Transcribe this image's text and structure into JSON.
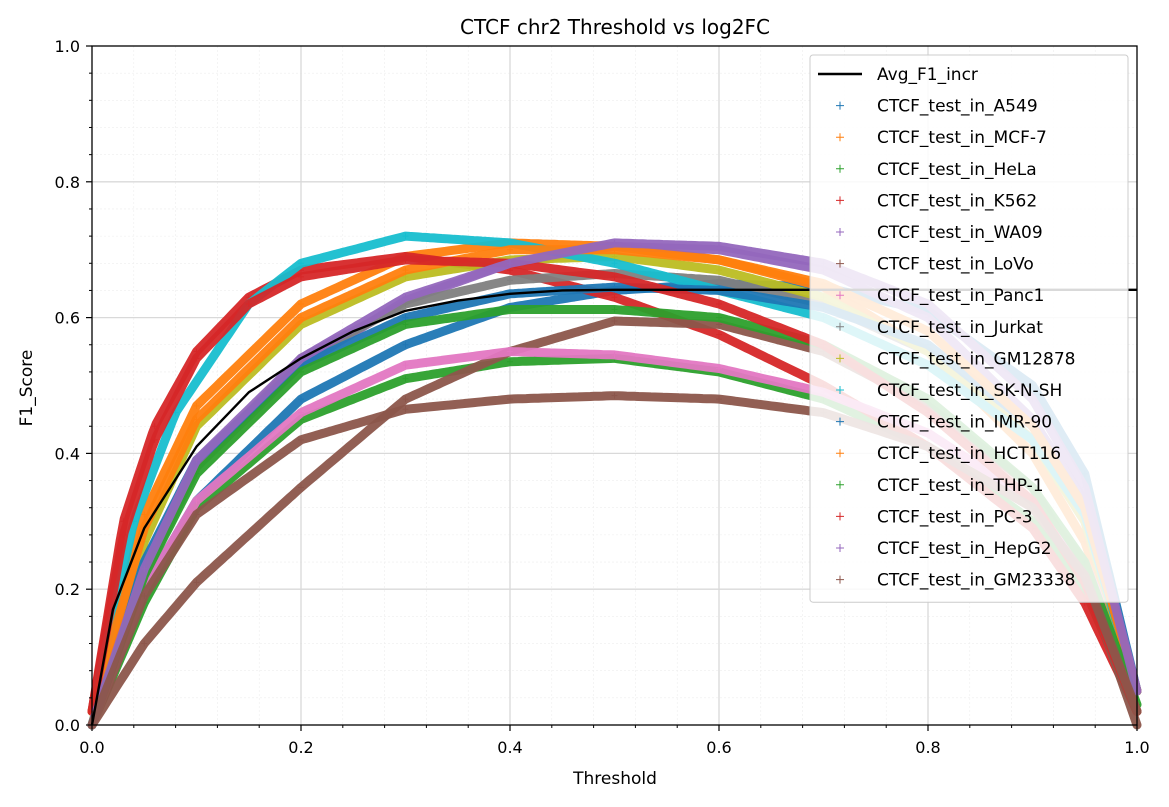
{
  "chart_data": {
    "type": "scatter",
    "title": "CTCF chr2 Threshold vs log2FC",
    "xlabel": "Threshold",
    "ylabel": "F1_Score",
    "xlim": [
      0,
      1
    ],
    "ylim": [
      0,
      1
    ],
    "xticks": [
      "0.0",
      "0.2",
      "0.4",
      "0.6",
      "0.8",
      "1.0"
    ],
    "yticks": [
      "0.0",
      "0.2",
      "0.4",
      "0.6",
      "0.8",
      "1.0"
    ],
    "grid": true,
    "legend_position": "upper-right",
    "average_line": {
      "name": "Avg_F1_incr",
      "color": "#000000",
      "points": [
        [
          0.0,
          0.0
        ],
        [
          0.02,
          0.17
        ],
        [
          0.05,
          0.29
        ],
        [
          0.1,
          0.41
        ],
        [
          0.15,
          0.49
        ],
        [
          0.2,
          0.54
        ],
        [
          0.25,
          0.58
        ],
        [
          0.3,
          0.61
        ],
        [
          0.35,
          0.625
        ],
        [
          0.4,
          0.635
        ],
        [
          0.45,
          0.64
        ],
        [
          0.5,
          0.641
        ],
        [
          0.6,
          0.641
        ],
        [
          0.7,
          0.641
        ],
        [
          0.8,
          0.641
        ],
        [
          0.9,
          0.641
        ],
        [
          1.0,
          0.641
        ]
      ]
    },
    "series": [
      {
        "name": "CTCF_test_in_A549",
        "color": "#1f77b4",
        "points": [
          [
            0.0,
            0.0
          ],
          [
            0.05,
            0.2
          ],
          [
            0.1,
            0.33
          ],
          [
            0.2,
            0.48
          ],
          [
            0.3,
            0.56
          ],
          [
            0.4,
            0.615
          ],
          [
            0.5,
            0.64
          ],
          [
            0.6,
            0.65
          ],
          [
            0.7,
            0.645
          ],
          [
            0.8,
            0.61
          ],
          [
            0.9,
            0.5
          ],
          [
            0.95,
            0.37
          ],
          [
            1.0,
            0.05
          ]
        ]
      },
      {
        "name": "CTCF_test_in_MCF-7",
        "color": "#ff7f0e",
        "points": [
          [
            0.0,
            0.02
          ],
          [
            0.05,
            0.31
          ],
          [
            0.1,
            0.47
          ],
          [
            0.2,
            0.62
          ],
          [
            0.3,
            0.69
          ],
          [
            0.4,
            0.71
          ],
          [
            0.5,
            0.705
          ],
          [
            0.6,
            0.685
          ],
          [
            0.7,
            0.645
          ],
          [
            0.8,
            0.55
          ],
          [
            0.9,
            0.4
          ],
          [
            0.95,
            0.27
          ],
          [
            1.0,
            0.05
          ]
        ]
      },
      {
        "name": "CTCF_test_in_HeLa",
        "color": "#2ca02c",
        "points": [
          [
            0.0,
            0.0
          ],
          [
            0.05,
            0.18
          ],
          [
            0.1,
            0.32
          ],
          [
            0.2,
            0.45
          ],
          [
            0.3,
            0.51
          ],
          [
            0.4,
            0.535
          ],
          [
            0.5,
            0.54
          ],
          [
            0.6,
            0.52
          ],
          [
            0.7,
            0.48
          ],
          [
            0.8,
            0.41
          ],
          [
            0.9,
            0.3
          ],
          [
            0.95,
            0.2
          ],
          [
            1.0,
            0.02
          ]
        ]
      },
      {
        "name": "CTCF_test_in_K562",
        "color": "#d62728",
        "points": [
          [
            0.0,
            0.02
          ],
          [
            0.03,
            0.3
          ],
          [
            0.06,
            0.44
          ],
          [
            0.1,
            0.55
          ],
          [
            0.15,
            0.63
          ],
          [
            0.2,
            0.67
          ],
          [
            0.3,
            0.69
          ],
          [
            0.4,
            0.67
          ],
          [
            0.5,
            0.63
          ],
          [
            0.6,
            0.575
          ],
          [
            0.7,
            0.5
          ],
          [
            0.8,
            0.41
          ],
          [
            0.9,
            0.29
          ],
          [
            0.95,
            0.18
          ],
          [
            1.0,
            0.02
          ]
        ]
      },
      {
        "name": "CTCF_test_in_WA09",
        "color": "#9467bd",
        "points": [
          [
            0.0,
            0.0
          ],
          [
            0.05,
            0.22
          ],
          [
            0.1,
            0.38
          ],
          [
            0.2,
            0.53
          ],
          [
            0.3,
            0.625
          ],
          [
            0.4,
            0.68
          ],
          [
            0.5,
            0.705
          ],
          [
            0.6,
            0.7
          ],
          [
            0.7,
            0.67
          ],
          [
            0.8,
            0.6
          ],
          [
            0.9,
            0.45
          ],
          [
            0.95,
            0.33
          ],
          [
            1.0,
            0.05
          ]
        ]
      },
      {
        "name": "CTCF_test_in_LoVo",
        "color": "#8c564b",
        "points": [
          [
            0.0,
            0.0
          ],
          [
            0.05,
            0.12
          ],
          [
            0.1,
            0.21
          ],
          [
            0.2,
            0.35
          ],
          [
            0.3,
            0.48
          ],
          [
            0.4,
            0.55
          ],
          [
            0.5,
            0.595
          ],
          [
            0.6,
            0.59
          ],
          [
            0.7,
            0.55
          ],
          [
            0.8,
            0.47
          ],
          [
            0.9,
            0.35
          ],
          [
            0.95,
            0.22
          ],
          [
            1.0,
            0.0
          ]
        ]
      },
      {
        "name": "CTCF_test_in_Panc1",
        "color": "#e377c2",
        "points": [
          [
            0.0,
            0.0
          ],
          [
            0.05,
            0.2
          ],
          [
            0.1,
            0.33
          ],
          [
            0.2,
            0.46
          ],
          [
            0.3,
            0.53
          ],
          [
            0.4,
            0.55
          ],
          [
            0.5,
            0.545
          ],
          [
            0.6,
            0.525
          ],
          [
            0.7,
            0.49
          ],
          [
            0.8,
            0.43
          ],
          [
            0.9,
            0.33
          ],
          [
            0.95,
            0.24
          ],
          [
            1.0,
            0.05
          ]
        ]
      },
      {
        "name": "CTCF_test_in_Jurkat",
        "color": "#7f7f7f",
        "points": [
          [
            0.0,
            0.0
          ],
          [
            0.05,
            0.23
          ],
          [
            0.1,
            0.38
          ],
          [
            0.2,
            0.54
          ],
          [
            0.3,
            0.62
          ],
          [
            0.4,
            0.655
          ],
          [
            0.5,
            0.665
          ],
          [
            0.6,
            0.655
          ],
          [
            0.7,
            0.62
          ],
          [
            0.8,
            0.55
          ],
          [
            0.9,
            0.42
          ],
          [
            0.95,
            0.3
          ],
          [
            1.0,
            0.05
          ]
        ]
      },
      {
        "name": "CTCF_test_in_GM12878",
        "color": "#bcbd22",
        "points": [
          [
            0.0,
            0.0
          ],
          [
            0.05,
            0.27
          ],
          [
            0.1,
            0.44
          ],
          [
            0.2,
            0.59
          ],
          [
            0.3,
            0.66
          ],
          [
            0.4,
            0.685
          ],
          [
            0.5,
            0.69
          ],
          [
            0.6,
            0.67
          ],
          [
            0.7,
            0.63
          ],
          [
            0.8,
            0.55
          ],
          [
            0.9,
            0.42
          ],
          [
            0.95,
            0.3
          ],
          [
            1.0,
            0.05
          ]
        ]
      },
      {
        "name": "CTCF_test_in_SK-N-SH",
        "color": "#17becf",
        "points": [
          [
            0.0,
            0.02
          ],
          [
            0.04,
            0.3
          ],
          [
            0.08,
            0.46
          ],
          [
            0.15,
            0.62
          ],
          [
            0.2,
            0.68
          ],
          [
            0.3,
            0.72
          ],
          [
            0.4,
            0.71
          ],
          [
            0.5,
            0.68
          ],
          [
            0.6,
            0.64
          ],
          [
            0.7,
            0.6
          ],
          [
            0.8,
            0.53
          ],
          [
            0.9,
            0.42
          ],
          [
            0.95,
            0.31
          ],
          [
            1.0,
            0.05
          ]
        ]
      },
      {
        "name": "CTCF_test_in_IMR-90",
        "color": "#1f77b4",
        "points": [
          [
            0.0,
            0.0
          ],
          [
            0.05,
            0.24
          ],
          [
            0.1,
            0.39
          ],
          [
            0.2,
            0.53
          ],
          [
            0.3,
            0.6
          ],
          [
            0.4,
            0.635
          ],
          [
            0.5,
            0.645
          ],
          [
            0.6,
            0.64
          ],
          [
            0.7,
            0.615
          ],
          [
            0.8,
            0.56
          ],
          [
            0.9,
            0.44
          ],
          [
            0.95,
            0.32
          ],
          [
            1.0,
            0.05
          ]
        ]
      },
      {
        "name": "CTCF_test_in_HCT116",
        "color": "#ff7f0e",
        "points": [
          [
            0.0,
            0.02
          ],
          [
            0.05,
            0.29
          ],
          [
            0.1,
            0.45
          ],
          [
            0.2,
            0.6
          ],
          [
            0.3,
            0.67
          ],
          [
            0.4,
            0.7
          ],
          [
            0.5,
            0.7
          ],
          [
            0.6,
            0.685
          ],
          [
            0.7,
            0.65
          ],
          [
            0.8,
            0.58
          ],
          [
            0.9,
            0.44
          ],
          [
            0.95,
            0.32
          ],
          [
            1.0,
            0.05
          ]
        ]
      },
      {
        "name": "CTCF_test_in_THP-1",
        "color": "#2ca02c",
        "points": [
          [
            0.0,
            0.0
          ],
          [
            0.05,
            0.22
          ],
          [
            0.1,
            0.37
          ],
          [
            0.2,
            0.52
          ],
          [
            0.3,
            0.59
          ],
          [
            0.4,
            0.612
          ],
          [
            0.5,
            0.612
          ],
          [
            0.6,
            0.6
          ],
          [
            0.7,
            0.56
          ],
          [
            0.8,
            0.48
          ],
          [
            0.9,
            0.35
          ],
          [
            0.95,
            0.24
          ],
          [
            1.0,
            0.03
          ]
        ]
      },
      {
        "name": "CTCF_test_in_PC-3",
        "color": "#d62728",
        "points": [
          [
            0.0,
            0.02
          ],
          [
            0.03,
            0.28
          ],
          [
            0.06,
            0.42
          ],
          [
            0.1,
            0.54
          ],
          [
            0.15,
            0.62
          ],
          [
            0.2,
            0.66
          ],
          [
            0.3,
            0.685
          ],
          [
            0.4,
            0.68
          ],
          [
            0.5,
            0.66
          ],
          [
            0.6,
            0.62
          ],
          [
            0.7,
            0.56
          ],
          [
            0.8,
            0.46
          ],
          [
            0.9,
            0.33
          ],
          [
            0.95,
            0.21
          ],
          [
            1.0,
            0.02
          ]
        ]
      },
      {
        "name": "CTCF_test_in_HepG2",
        "color": "#9467bd",
        "points": [
          [
            0.0,
            0.0
          ],
          [
            0.05,
            0.23
          ],
          [
            0.1,
            0.39
          ],
          [
            0.2,
            0.54
          ],
          [
            0.3,
            0.63
          ],
          [
            0.4,
            0.68
          ],
          [
            0.5,
            0.71
          ],
          [
            0.6,
            0.705
          ],
          [
            0.7,
            0.68
          ],
          [
            0.8,
            0.62
          ],
          [
            0.9,
            0.48
          ],
          [
            0.95,
            0.35
          ],
          [
            1.0,
            0.05
          ]
        ]
      },
      {
        "name": "CTCF_test_in_GM23338",
        "color": "#8c564b",
        "points": [
          [
            0.0,
            0.0
          ],
          [
            0.05,
            0.19
          ],
          [
            0.1,
            0.31
          ],
          [
            0.2,
            0.42
          ],
          [
            0.3,
            0.465
          ],
          [
            0.4,
            0.48
          ],
          [
            0.5,
            0.485
          ],
          [
            0.6,
            0.48
          ],
          [
            0.7,
            0.46
          ],
          [
            0.8,
            0.41
          ],
          [
            0.9,
            0.32
          ],
          [
            0.95,
            0.22
          ],
          [
            1.0,
            0.02
          ]
        ]
      }
    ]
  }
}
